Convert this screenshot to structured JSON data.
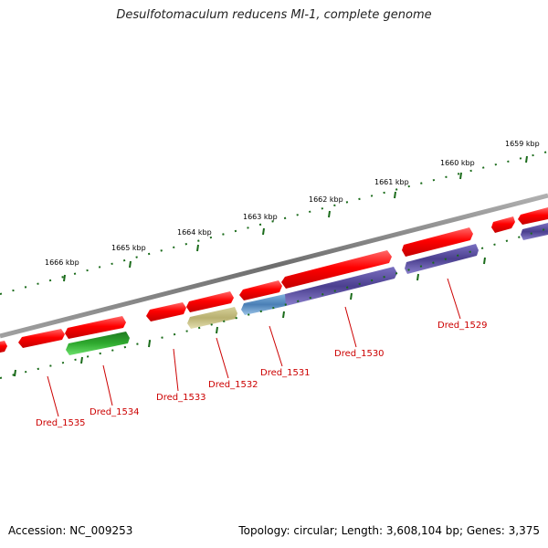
{
  "title": "Desulfotomaculum reducens MI-1, complete genome",
  "footer": {
    "accession": "Accession: NC_009253",
    "summary": "Topology: circular; Length: 3,608,104 bp; Genes: 3,375"
  },
  "ruler_labels": [
    "1659 kbp",
    "1660 kbp",
    "1661 kbp",
    "1662 kbp",
    "1663 kbp",
    "1664 kbp",
    "1665 kbp",
    "1666 kbp"
  ],
  "gene_labels": [
    "Dred_1529",
    "Dred_1530",
    "Dred_1531",
    "Dred_1532",
    "Dred_1533",
    "Dred_1534",
    "Dred_1535"
  ],
  "colors": {
    "cds": "#ff0000",
    "backbone": "#808080",
    "ticks": "#1a6b1a",
    "label": "#cc0000",
    "feature_purple": "#4b3f8f",
    "feature_blue": "#4a7fb5",
    "feature_khaki": "#b8b070",
    "feature_green": "#2faa2f"
  }
}
